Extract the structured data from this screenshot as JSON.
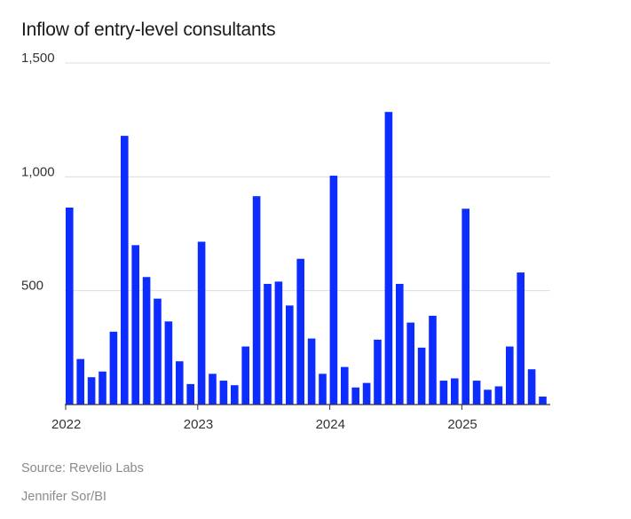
{
  "chart_data": {
    "type": "bar",
    "title": "Inflow of entry-level consultants",
    "xlabel": "",
    "ylabel": "",
    "ylim": [
      0,
      1500
    ],
    "yticks": [
      0,
      500,
      1000,
      1500
    ],
    "ytick_labels": [
      "",
      "500",
      "1,000",
      "1,500"
    ],
    "xtick_labels": [
      {
        "label": "2022",
        "index": 0
      },
      {
        "label": "2023",
        "index": 12
      },
      {
        "label": "2024",
        "index": 24
      },
      {
        "label": "2025",
        "index": 36
      }
    ],
    "grid": true,
    "color": "#0d2cff",
    "categories": [
      "Jan 2022",
      "Feb 2022",
      "Mar 2022",
      "Apr 2022",
      "May 2022",
      "Jun 2022",
      "Jul 2022",
      "Aug 2022",
      "Sep 2022",
      "Oct 2022",
      "Nov 2022",
      "Dec 2022",
      "Jan 2023",
      "Feb 2023",
      "Mar 2023",
      "Apr 2023",
      "May 2023",
      "Jun 2023",
      "Jul 2023",
      "Aug 2023",
      "Sep 2023",
      "Oct 2023",
      "Nov 2023",
      "Dec 2023",
      "Jan 2024",
      "Feb 2024",
      "Mar 2024",
      "Apr 2024",
      "May 2024",
      "Jun 2024",
      "Jul 2024",
      "Aug 2024",
      "Sep 2024",
      "Oct 2024",
      "Nov 2024",
      "Dec 2024",
      "Jan 2025",
      "Feb 2025",
      "Mar 2025",
      "Apr 2025",
      "May 2025",
      "Jun 2025",
      "Jul 2025",
      "Aug 2025"
    ],
    "values": [
      865,
      200,
      120,
      145,
      320,
      1180,
      700,
      560,
      465,
      365,
      190,
      90,
      715,
      135,
      105,
      85,
      255,
      915,
      530,
      540,
      435,
      640,
      290,
      135,
      1005,
      165,
      75,
      95,
      285,
      1285,
      530,
      360,
      250,
      390,
      105,
      115,
      860,
      105,
      65,
      80,
      255,
      580,
      155,
      35
    ]
  },
  "footer": {
    "source": "Source: Revelio Labs",
    "credit": "Jennifer Sor/BI"
  }
}
